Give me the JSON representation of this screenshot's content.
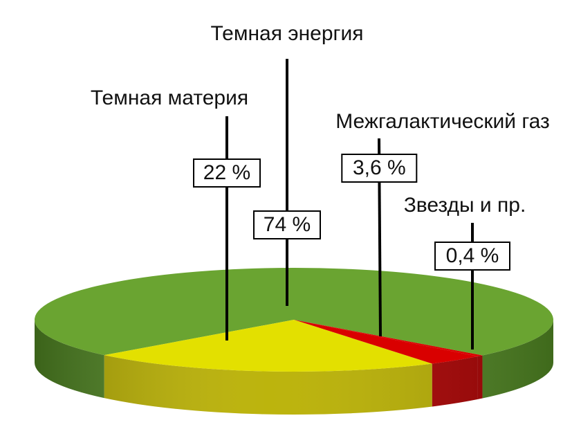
{
  "chart_data": {
    "type": "pie",
    "categories": [
      "Темная энергия",
      "Темная материя",
      "Межгалактический газ",
      "Звезды и пр."
    ],
    "values": [
      74,
      22,
      3.6,
      0.4
    ],
    "value_labels": [
      "74 %",
      "22 %",
      "3,6 %",
      "0,4 %"
    ],
    "colors": [
      "#6aa431",
      "#e3e000",
      "#d90000",
      "#d90000"
    ],
    "side_colors": [
      "#4f8422",
      "#b9b000",
      "#a80000",
      "#a80000"
    ]
  }
}
